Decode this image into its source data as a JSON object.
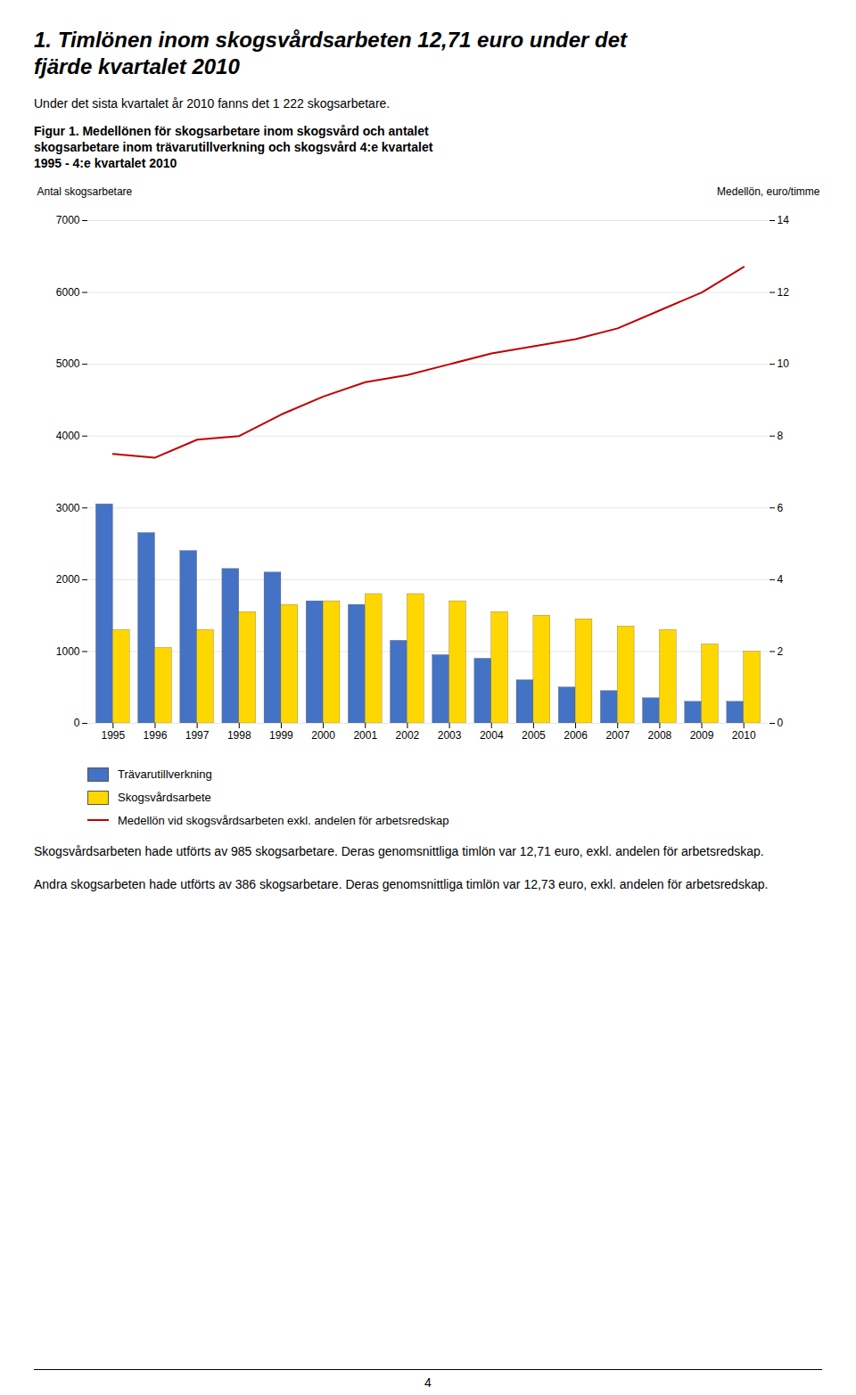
{
  "chart_data": {
    "type": "bar",
    "title": "1. Timlönen inom skogsvårdsarbeten 12,71 euro under det\nfjärde kvartalet 2010",
    "subtitle": "Under det sista kvartalet år 2010 fanns det 1 222 skogsarbetare.",
    "annotations": [
      "Figur 1. Medellönen för skogsarbetare inom skogsvård och antalet\nskogsarbetare inom trävarutillverkning och skogsvård 4:e kvartalet\n1995 - 4:e kvartalet 2010",
      "Skogsvårdsarbeten hade utförts av 985 skogsarbetare. Deras genomsnittliga timlön var 12,71 euro, exkl. andelen för arbetsredskap.",
      "Andra skogsarbeten hade utförts av 386 skogsarbetare. Deras genomsnittliga timlön var 12,73 euro, exkl. andelen för arbetsredskap.",
      "4"
    ],
    "categories": [
      "1995",
      "1996",
      "1997",
      "1998",
      "1999",
      "2000",
      "2001",
      "2002",
      "2003",
      "2004",
      "2005",
      "2006",
      "2007",
      "2008",
      "2009",
      "2010"
    ],
    "series": [
      {
        "name": "Trävarutillverkning",
        "color": "#4472C4",
        "type": "bar",
        "values": [
          3050,
          2650,
          2400,
          2150,
          2100,
          1700,
          1650,
          1150,
          950,
          900,
          600,
          500,
          450,
          350,
          300,
          300
        ]
      },
      {
        "name": "Skogsvårdsarbete",
        "color": "#FFD700",
        "type": "bar",
        "values": [
          1300,
          1050,
          1300,
          1550,
          1650,
          1700,
          1800,
          1800,
          1700,
          1550,
          1500,
          1450,
          1350,
          1300,
          1100,
          1000
        ]
      },
      {
        "name": "Medellön vid skogsvårdsarbeten exkl. andelen för arbetsredskap",
        "color": "#C00000",
        "type": "line",
        "axis": "y2",
        "values": [
          7.5,
          7.4,
          7.9,
          8.0,
          8.6,
          9.1,
          9.5,
          9.7,
          10.0,
          10.3,
          10.5,
          10.7,
          11.0,
          11.5,
          12.0,
          12.71
        ]
      }
    ],
    "ylabel": "Antal skogsarbetare",
    "y2label": "Medellön, euro/timme",
    "ylim": [
      0,
      7000
    ],
    "yticks": [
      0,
      1000,
      2000,
      3000,
      4000,
      5000,
      6000,
      7000
    ],
    "y2lim": [
      0,
      14
    ],
    "y2ticks": [
      0,
      2,
      4,
      6,
      8,
      10,
      12,
      14
    ],
    "grid": true,
    "legend": "bottom"
  }
}
